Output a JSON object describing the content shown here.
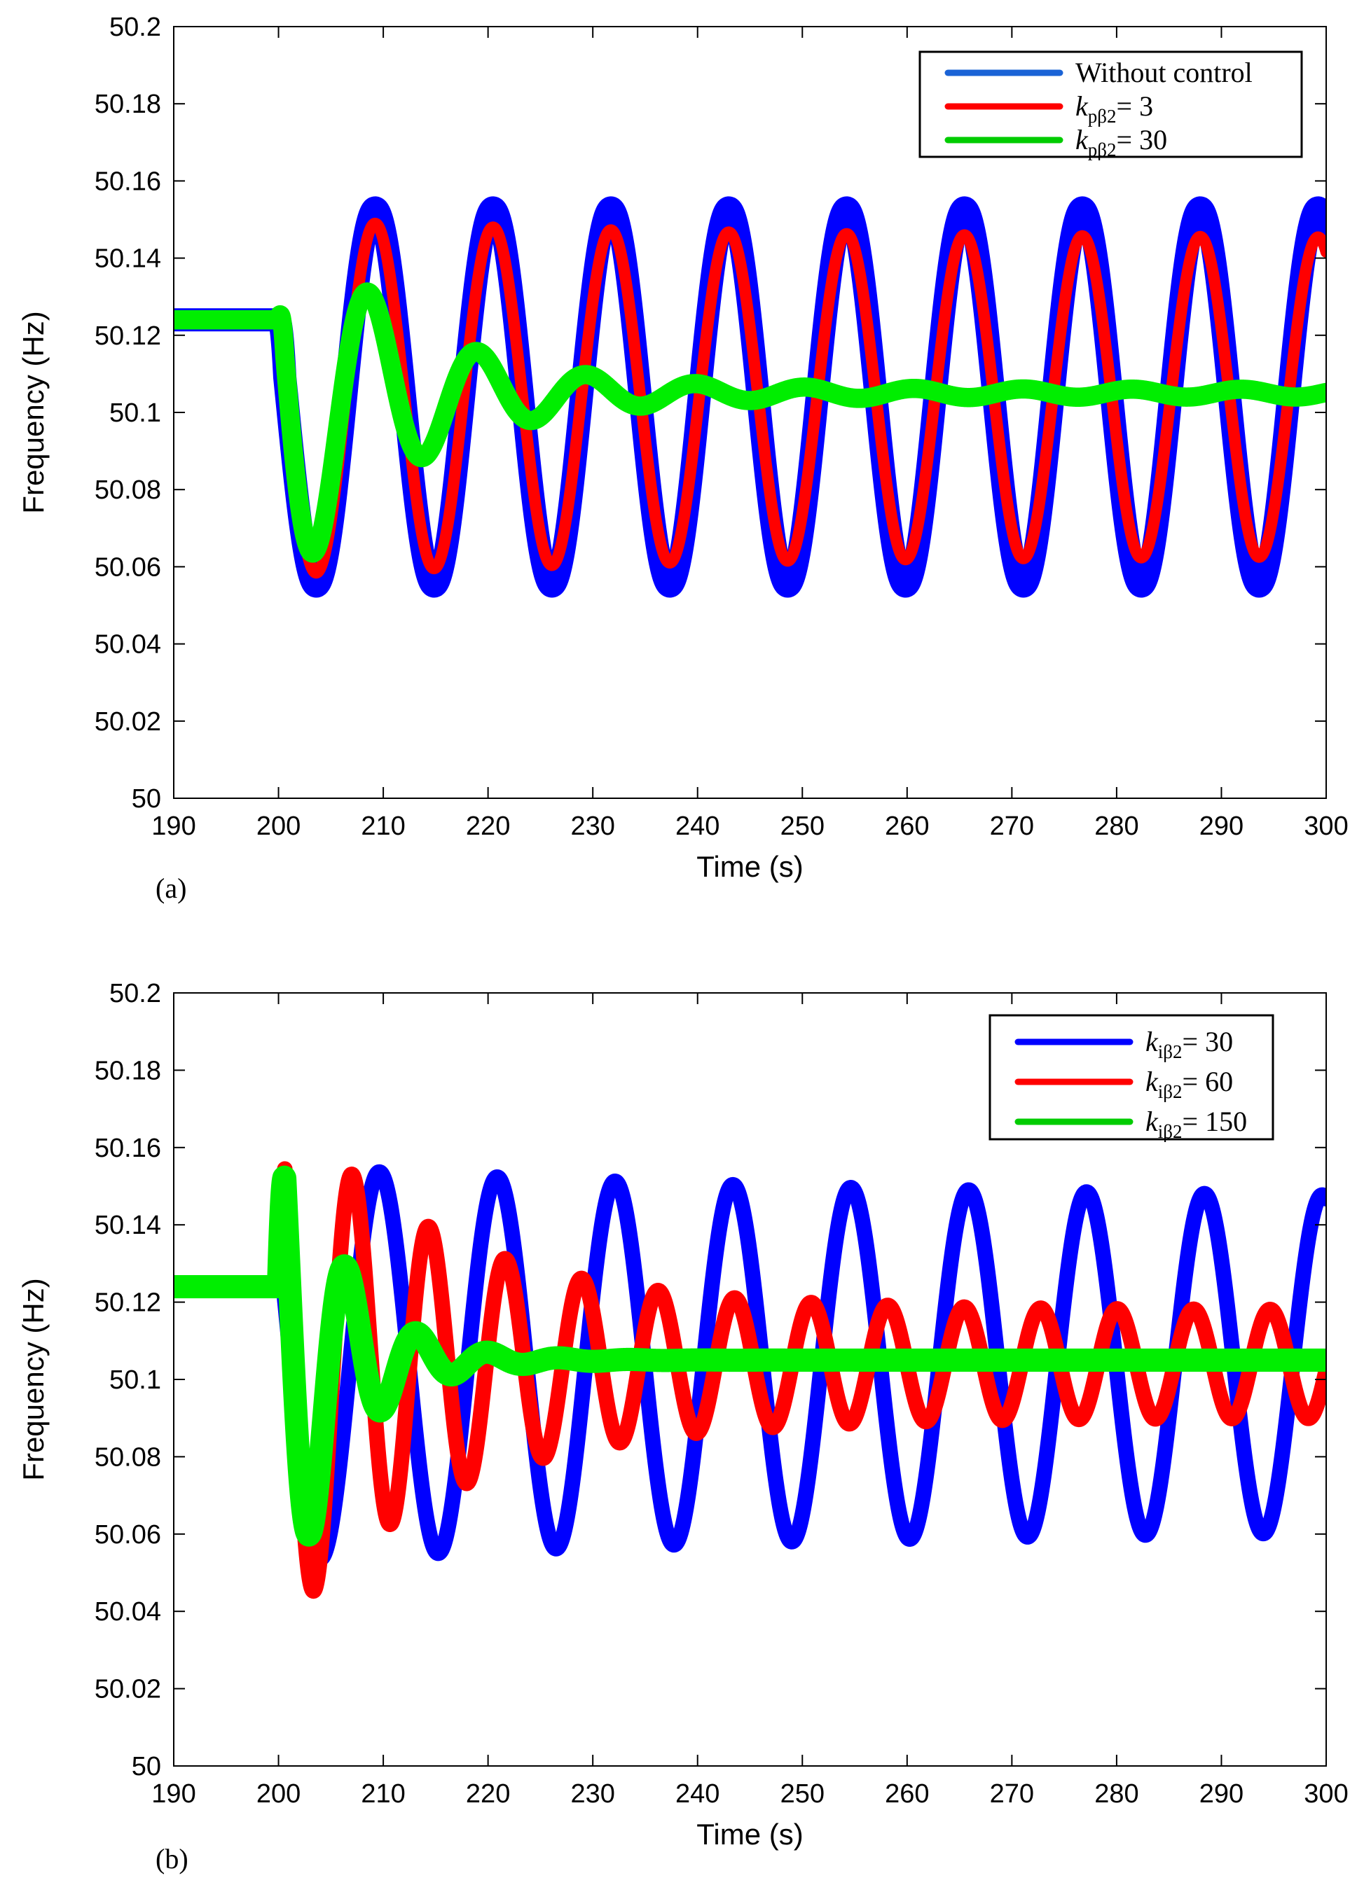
{
  "chart_data": [
    {
      "type": "line",
      "panel_label": "(a)",
      "xlabel": "Time (s)",
      "ylabel": "Frequency (Hz)",
      "xlim": [
        190,
        300
      ],
      "ylim": [
        50,
        50.2
      ],
      "x_ticks": [
        "190",
        "200",
        "210",
        "220",
        "230",
        "240",
        "250",
        "260",
        "270",
        "280",
        "290",
        "300"
      ],
      "y_ticks": [
        "50",
        "50.02",
        "50.04",
        "50.06",
        "50.08",
        "50.1",
        "50.12",
        "50.14",
        "50.16",
        "50.18",
        "50.2"
      ],
      "legend_position": "top-right",
      "event_time": 200,
      "pre_event_value": 50.124,
      "series": [
        {
          "name": "Without control",
          "legend_label": {
            "sym": "",
            "sub": "",
            "rest": "Without control"
          },
          "color": "#0000ff",
          "legend_color": "#1a63d6",
          "band": 0.006,
          "oscillation": {
            "start": 200,
            "period": 11.25,
            "center": 50.104,
            "amp0": 0.049,
            "amp_final": 0.049,
            "decay_tau": 1000,
            "trough_at": 203.6
          }
        },
        {
          "name": "kpβ2= 3",
          "legend_label": {
            "sym": "k",
            "sub": "pβ2",
            "rest": "= 3"
          },
          "color": "#ff0000",
          "legend_color": "#ff0000",
          "band": 0.003,
          "oscillation": {
            "start": 200,
            "period": 11.25,
            "center": 50.104,
            "amp0": 0.046,
            "amp_final": 0.041,
            "decay_tau": 40,
            "trough_at": 203.6
          }
        },
        {
          "name": "kpβ2= 30",
          "legend_label": {
            "sym": "k",
            "sub": "pβ2",
            "rest": "= 30"
          },
          "color": "#00ee00",
          "legend_color": "#00cc00",
          "band": 0.005,
          "oscillation": {
            "start": 200,
            "period": 10.4,
            "center": 50.105,
            "amp0": 0.056,
            "amp_final": 0.001,
            "decay_tau": 11,
            "trough_at": 203.5
          }
        }
      ]
    },
    {
      "type": "line",
      "panel_label": "(b)",
      "xlabel": "Time (s)",
      "ylabel": "Frequency (Hz)",
      "xlim": [
        190,
        300
      ],
      "ylim": [
        50,
        50.2
      ],
      "x_ticks": [
        "190",
        "200",
        "210",
        "220",
        "230",
        "240",
        "250",
        "260",
        "270",
        "280",
        "290",
        "300"
      ],
      "y_ticks": [
        "50",
        "50.02",
        "50.04",
        "50.06",
        "50.08",
        "50.1",
        "50.12",
        "50.14",
        "50.16",
        "50.18",
        "50.2"
      ],
      "legend_position": "top-right",
      "event_time": 200,
      "pre_event_value": 50.124,
      "series": [
        {
          "name": "kiβ2= 30",
          "legend_label": {
            "sym": "k",
            "sub": "iβ2",
            "rest": "= 30"
          },
          "color": "#0000ff",
          "legend_color": "#0000ff",
          "band": 0.004,
          "oscillation": {
            "start": 200,
            "period": 11.25,
            "center": 50.104,
            "amp0": 0.051,
            "amp_final": 0.042,
            "decay_tau": 60,
            "trough_at": 204.0
          }
        },
        {
          "name": "kiβ2= 60",
          "legend_label": {
            "sym": "k",
            "sub": "iβ2",
            "rest": "= 60"
          },
          "color": "#ff0000",
          "legend_color": "#ff0000",
          "band": 0.004,
          "oscillation": {
            "start": 200,
            "period": 7.3,
            "center": 50.104,
            "amp0": 0.07,
            "amp_final": 0.014,
            "decay_tau": 15,
            "trough_at": 203.4
          }
        },
        {
          "name": "kiβ2= 150",
          "legend_label": {
            "sym": "k",
            "sub": "iβ2",
            "rest": "= 150"
          },
          "color": "#00ee00",
          "legend_color": "#00cc00",
          "band": 0.006,
          "oscillation": {
            "start": 200,
            "period": 6.8,
            "center": 50.105,
            "amp0": 0.078,
            "amp_final": 0.0,
            "decay_tau": 5.5,
            "trough_at": 203.1
          }
        }
      ]
    }
  ]
}
